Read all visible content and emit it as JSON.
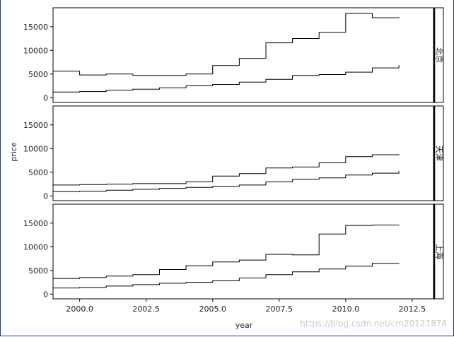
{
  "chart_data": {
    "type": "line",
    "step": true,
    "xlabel": "year",
    "ylabel": "price",
    "xlim": [
      1999,
      2013.3
    ],
    "ylim": [
      -1000,
      19000
    ],
    "x_ticks": [
      2000.0,
      2002.5,
      2005.0,
      2007.5,
      2010.0,
      2012.5
    ],
    "x_tick_labels": [
      "2000.0",
      "2002.5",
      "2005.0",
      "2007.5",
      "2010.0",
      "2012.5"
    ],
    "y_ticks": [
      0,
      5000,
      10000,
      15000
    ],
    "y_tick_labels": [
      "0",
      "5000",
      "10000",
      "15000"
    ],
    "x": [
      1999,
      2000,
      2001,
      2002,
      2003,
      2004,
      2005,
      2006,
      2007,
      2008,
      2009,
      2010,
      2011,
      2012
    ],
    "panels": [
      {
        "label": "北京",
        "series": [
          {
            "values": [
              5600,
              4800,
              5000,
              4700,
              4700,
              5000,
              6800,
              8300,
              11600,
              12500,
              13800,
              17800,
              16900,
              17000
            ]
          },
          {
            "values": [
              1200,
              1300,
              1600,
              1800,
              2100,
              2500,
              2800,
              3300,
              3900,
              4700,
              4900,
              5400,
              6300,
              6900
            ]
          }
        ]
      },
      {
        "label": "天津",
        "series": [
          {
            "values": [
              2300,
              2400,
              2500,
              2600,
              2600,
              3000,
              4200,
              4700,
              5900,
              6100,
              7000,
              8300,
              8700,
              8600
            ]
          },
          {
            "values": [
              900,
              1000,
              1200,
              1400,
              1600,
              1800,
              2000,
              2300,
              3000,
              3500,
              3800,
              4400,
              4800,
              5300
            ]
          }
        ]
      },
      {
        "label": "上海",
        "series": [
          {
            "values": [
              3300,
              3500,
              3800,
              4100,
              5200,
              6000,
              6800,
              7200,
              8400,
              8300,
              12700,
              14500,
              14600,
              14500
            ]
          },
          {
            "values": [
              1300,
              1400,
              1700,
              2000,
              2300,
              2500,
              2800,
              3400,
              4100,
              4700,
              5300,
              5900,
              6500,
              6400
            ]
          }
        ]
      }
    ]
  },
  "watermark": "https://blog.csdn.net/cm20121878"
}
